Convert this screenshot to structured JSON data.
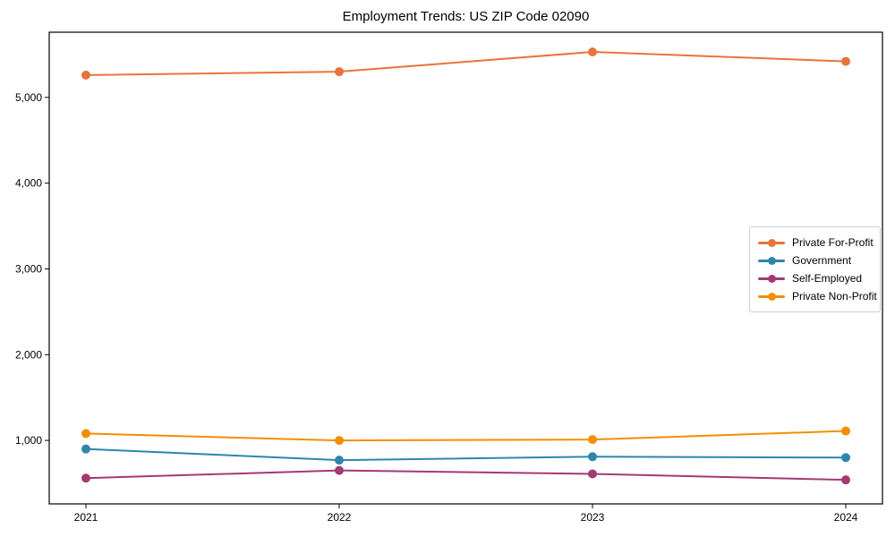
{
  "chart_data": {
    "type": "line",
    "title": "Employment Trends: US ZIP Code 02090",
    "xlabel": "",
    "ylabel": "",
    "categories": [
      "2021",
      "2022",
      "2023",
      "2024"
    ],
    "series": [
      {
        "name": "Private For-Profit",
        "color": "#E8743B",
        "values": [
          5260,
          5300,
          5530,
          5420
        ]
      },
      {
        "name": "Government",
        "color": "#2E86AB",
        "values": [
          900,
          770,
          810,
          800
        ]
      },
      {
        "name": "Self-Employed",
        "color": "#A23B72",
        "values": [
          560,
          650,
          610,
          540
        ]
      },
      {
        "name": "Private Non-Profit",
        "color": "#F18F01",
        "values": [
          1080,
          1000,
          1010,
          1110
        ]
      }
    ],
    "ylim": [
      260,
      5760
    ],
    "yticks": [
      1000,
      2000,
      3000,
      4000,
      5000
    ],
    "ytick_labels": [
      "1,000",
      "2,000",
      "3,000",
      "4,000",
      "5,000"
    ],
    "grid": false,
    "legend_position": "center-right",
    "frame": "full-box",
    "marker": "circle",
    "axis_color": "#000000",
    "background_color": "#ffffff"
  }
}
